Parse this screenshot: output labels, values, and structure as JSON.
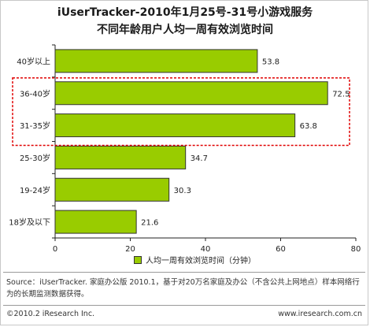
{
  "title": {
    "line1": "iUserTracker-2010年1月25号-31号小游戏服务",
    "line2": "不同年龄用户人均一周有效浏览时间"
  },
  "chart_data": {
    "type": "bar",
    "orientation": "horizontal",
    "categories": [
      "40岁以上",
      "36-40岁",
      "31-35岁",
      "25-30岁",
      "19-24岁",
      "18岁及以下"
    ],
    "series": [
      {
        "name": "人均一周有效浏览时间（分钟）",
        "values": [
          53.8,
          72.5,
          63.8,
          34.7,
          30.3,
          21.6
        ]
      }
    ],
    "value_labels": [
      "53.8",
      "72.5",
      "63.8",
      "34.7",
      "30.3",
      "21.6"
    ],
    "xlim": [
      0,
      80
    ],
    "xticks": [
      "0",
      "20",
      "40",
      "60",
      "80"
    ],
    "bar_color": "#99cc00",
    "highlight_color": "#e00000",
    "highlight_categories": [
      "36-40岁",
      "31-35岁"
    ],
    "legend_position": "bottom",
    "grid": false
  },
  "legend": {
    "label": "人均一周有效浏览时间（分钟）"
  },
  "source": "Source：iUserTracker. 家庭办公版 2010.1，基于对20万名家庭及办公（不含公共上网地点）样本网络行为的长期监测数据获得。",
  "copyright": "©2010.2 iResearch Inc.",
  "website": "www.iresearch.com.cn"
}
